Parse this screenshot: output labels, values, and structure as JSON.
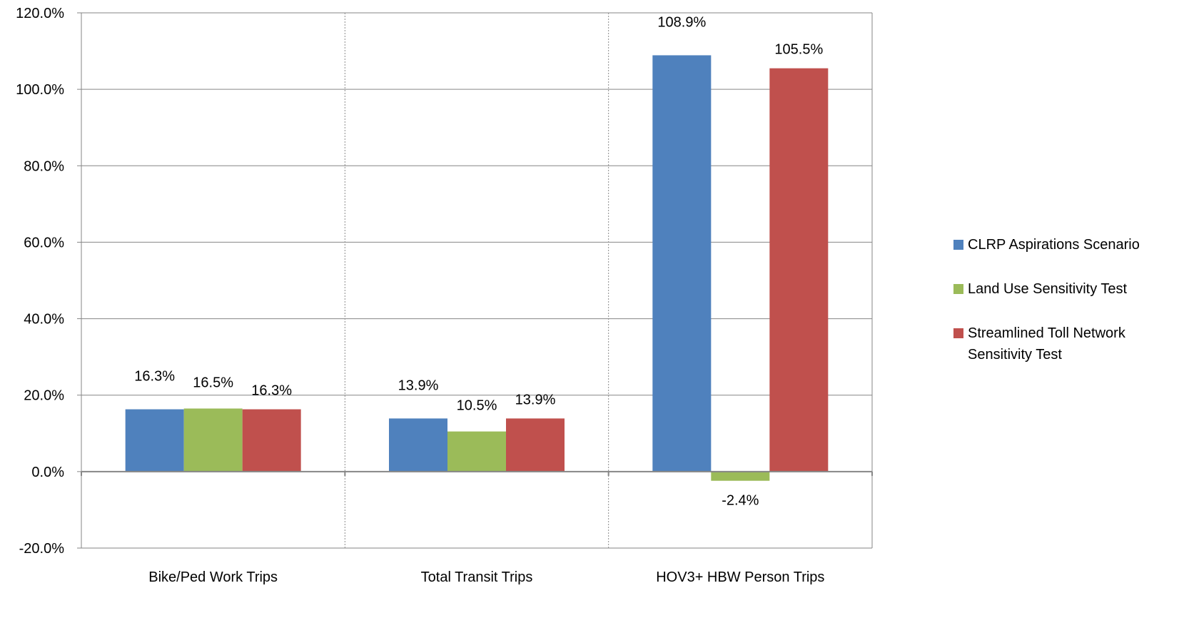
{
  "chart_data": {
    "type": "bar",
    "categories": [
      "Bike/Ped Work Trips",
      "Total Transit Trips",
      "HOV3+ HBW Person Trips"
    ],
    "series": [
      {
        "name": "CLRP Aspirations Scenario",
        "color": "#4F81BD",
        "values": [
          16.3,
          13.9,
          108.9
        ],
        "labels": [
          "16.3%",
          "13.9%",
          "108.9%"
        ]
      },
      {
        "name": "Land Use Sensitivity Test",
        "color": "#9BBB59",
        "values": [
          16.5,
          10.5,
          -2.4
        ],
        "labels": [
          "16.5%",
          "10.5%",
          "-2.4%"
        ]
      },
      {
        "name": "Streamlined Toll Network Sensitivity Test",
        "color": "#C0504D",
        "values": [
          16.3,
          13.9,
          105.5
        ],
        "labels": [
          "16.3%",
          "13.9%",
          "105.5%"
        ]
      }
    ],
    "ylim": [
      -20,
      120
    ],
    "yticks": [
      "-20.0%",
      "0.0%",
      "20.0%",
      "40.0%",
      "60.0%",
      "80.0%",
      "100.0%",
      "120.0%"
    ],
    "ytick_values": [
      -20,
      0,
      20,
      40,
      60,
      80,
      100,
      120
    ],
    "grid": "horizontal",
    "legend_position": "right",
    "title": "",
    "xlabel": "",
    "ylabel": ""
  }
}
